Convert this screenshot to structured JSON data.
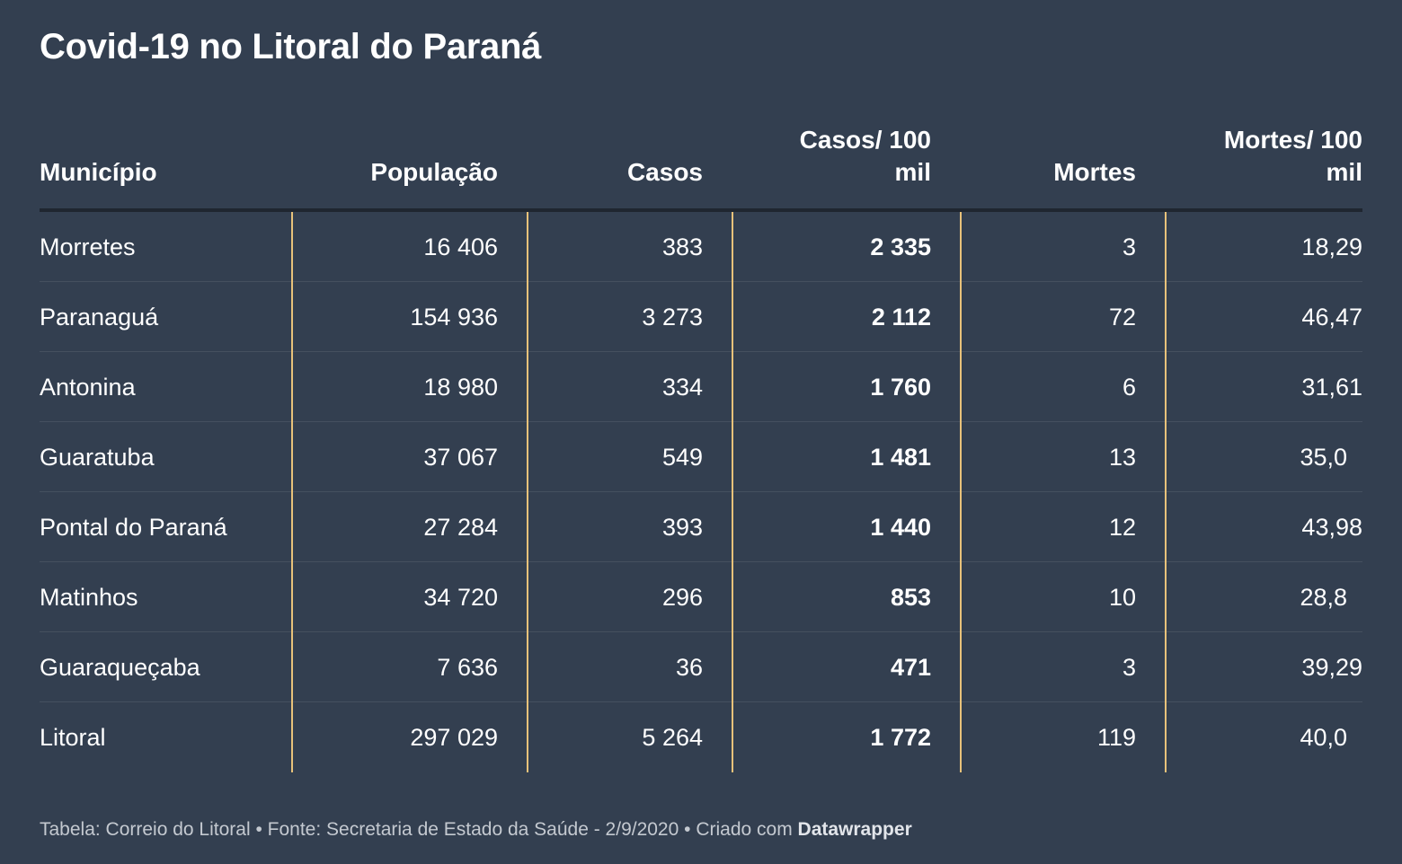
{
  "title": "Covid-19 no Litoral do Paraná",
  "chart_data": {
    "type": "table",
    "title": "Covid-19 no Litoral do Paraná",
    "columns": [
      "Município",
      "População",
      "Casos",
      "Casos/ 100 mil",
      "Mortes",
      "Mortes/ 100 mil"
    ],
    "rows": [
      [
        "Morretes",
        "16 406",
        "383",
        "2 335",
        "3",
        "18,29"
      ],
      [
        "Paranaguá",
        "154 936",
        "3 273",
        "2 112",
        "72",
        "46,47"
      ],
      [
        "Antonina",
        "18 980",
        "334",
        "1 760",
        "6",
        "31,61"
      ],
      [
        "Guaratuba",
        "37 067",
        "549",
        "1 481",
        "13",
        "35,0"
      ],
      [
        "Pontal do Paraná",
        "27 284",
        "393",
        "1 440",
        "12",
        "43,98"
      ],
      [
        "Matinhos",
        "34 720",
        "296",
        "853",
        "10",
        "28,8"
      ],
      [
        "Guaraqueçaba",
        "7 636",
        "36",
        "471",
        "3",
        "39,29"
      ],
      [
        "Litoral",
        "297 029",
        "5 264",
        "1 772",
        "119",
        "40,0"
      ]
    ]
  },
  "footer": {
    "prefix": "Tabela: Correio do Litoral • Fonte: Secretaria de Estado da Saúde - 2/9/2020 • Criado com ",
    "brand": "Datawrapper"
  },
  "colors": {
    "background": "#333f50",
    "column_divider": "#e8c27a",
    "text": "#ffffff",
    "footer_text": "#c4c9d0"
  }
}
